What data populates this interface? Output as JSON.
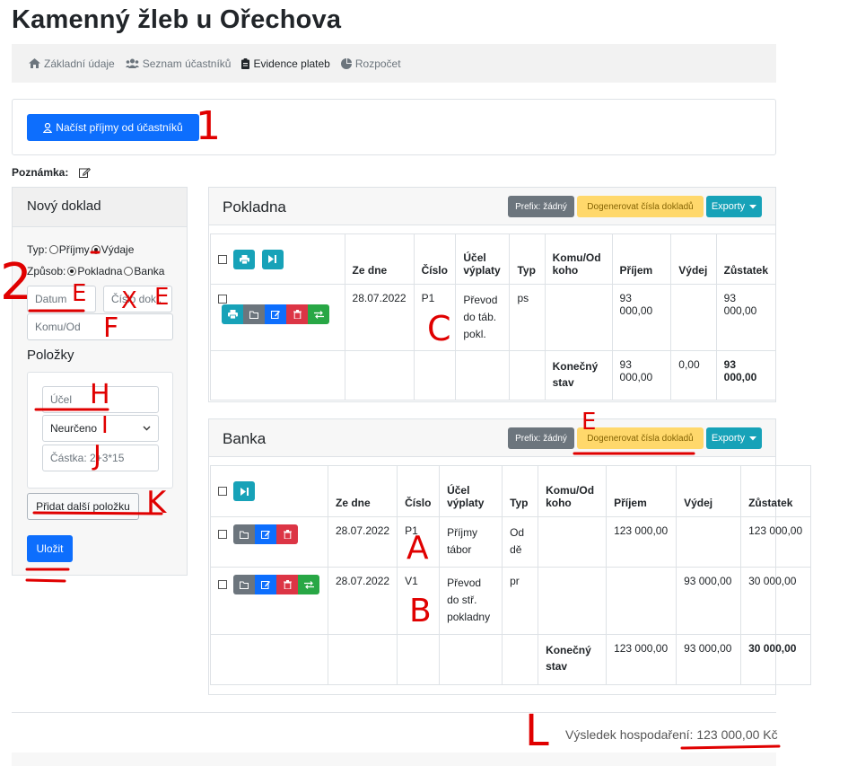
{
  "page": {
    "title": "Kamenný žleb u Ořechova"
  },
  "nav": [
    {
      "label": "Základní údaje",
      "icon": "home-icon",
      "active": false
    },
    {
      "label": "Seznam účastníků",
      "icon": "users-icon",
      "active": false
    },
    {
      "label": "Evidence plateb",
      "icon": "clipboard-icon",
      "active": true
    },
    {
      "label": "Rozpočet",
      "icon": "pie-chart-icon",
      "active": false
    }
  ],
  "top_card": {
    "load_button": "Načíst příjmy od účastníků"
  },
  "note": {
    "label": "Poznámka:"
  },
  "new_doc": {
    "title": "Nový doklad",
    "type_label": "Typ:",
    "type_income": "Příjmy",
    "type_expense": "Výdaje",
    "method_label": "Způsob:",
    "method_cash": "Pokladna",
    "method_bank": "Banka",
    "date_placeholder": "Datum",
    "number_placeholder": "Číslo dokl.",
    "to_placeholder": "Komu/Od",
    "items_title": "Položky",
    "purpose_placeholder": "Účel",
    "category_value": "Neurčeno",
    "amount_placeholder": "Částka: 2+3*15",
    "add_item_button": "Přidat další položku",
    "save_button": "Uložit"
  },
  "columns": {
    "date": "Ze dne",
    "number": "Číslo",
    "purpose": "Účel výplaty",
    "type": "Typ",
    "to": "Komu/Od koho",
    "income": "Příjem",
    "expense": "Výdej",
    "balance": "Zůstatek",
    "final": "Konečný stav"
  },
  "cash": {
    "title": "Pokladna",
    "prefix_button": "Prefix: žádný",
    "generate_button": "Dogenerovat čísla dokladů",
    "export_button": "Exporty",
    "rows": [
      {
        "date": "28.07.2022",
        "number": "P1",
        "purpose": "Převod do táb. pokl.",
        "type": "ps",
        "to": "",
        "income": "93 000,00",
        "expense": "",
        "balance": "93 000,00"
      }
    ],
    "total": {
      "income": "93 000,00",
      "expense": "0,00",
      "balance": "93 000,00"
    }
  },
  "bank": {
    "title": "Banka",
    "prefix_button": "Prefix: žádný",
    "generate_button": "Dogenerovat čísla dokladů",
    "export_button": "Exporty",
    "rows": [
      {
        "date": "28.07.2022",
        "number": "P1",
        "purpose": "Příjmy tábor",
        "type": "Od dě",
        "to": "",
        "income": "123 000,00",
        "expense": "",
        "balance": "123 000,00"
      },
      {
        "date": "28.07.2022",
        "number": "V1",
        "purpose": "Převod do stř. pokladny",
        "type": "pr",
        "to": "",
        "income": "",
        "expense": "93 000,00",
        "balance": "30 000,00"
      }
    ],
    "total": {
      "income": "123 000,00",
      "expense": "93 000,00",
      "balance": "30 000,00"
    }
  },
  "result": {
    "text": "Výsledek hospodaření: 123 000,00 Kč"
  },
  "annotations": {
    "a1": "1",
    "a2": "2",
    "e": "E",
    "x": "X",
    "e2": "E",
    "f": "F",
    "h": "H",
    "i": "I",
    "j": "J",
    "k": "K",
    "c": "C",
    "a": "A",
    "b": "B",
    "e3": "E",
    "l": "L"
  },
  "colors": {
    "primary": "#0d6efd",
    "annotation": "#e00000",
    "warning": "#ffd86b"
  }
}
